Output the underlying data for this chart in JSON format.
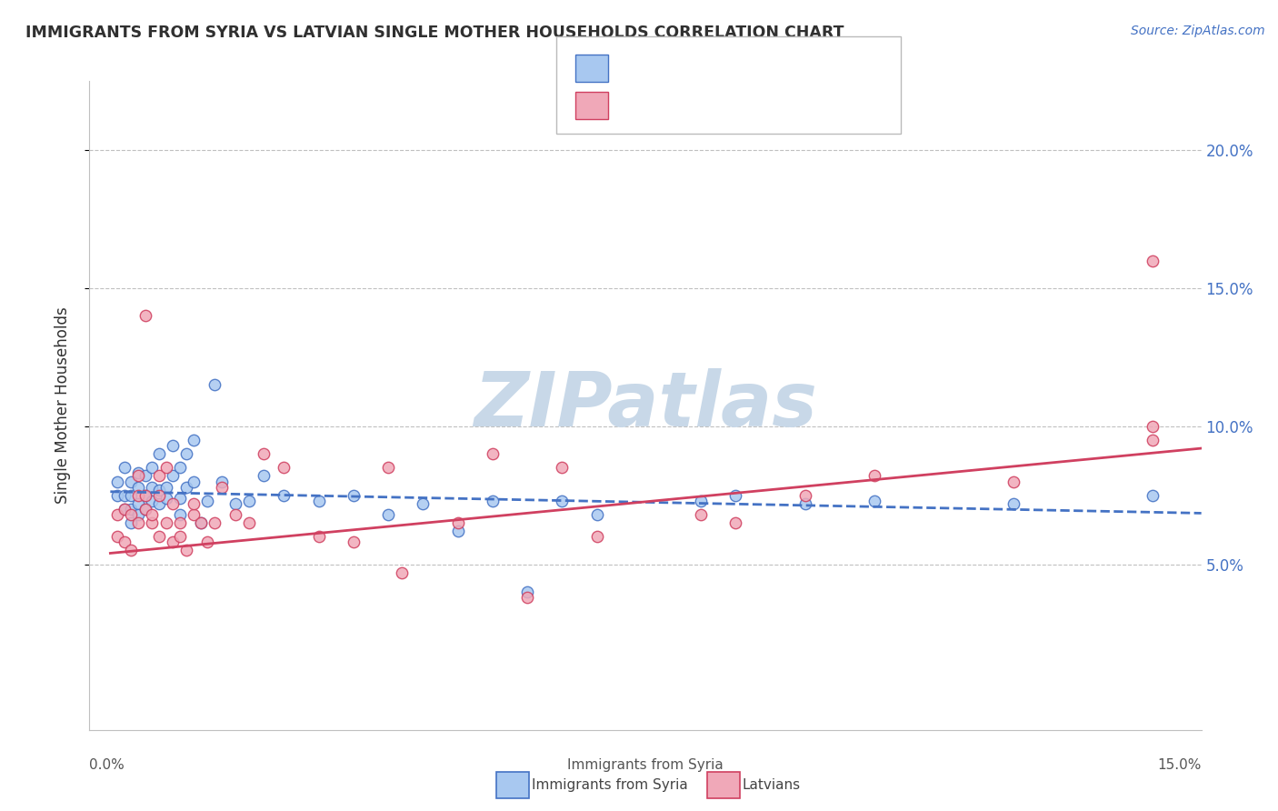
{
  "title": "IMMIGRANTS FROM SYRIA VS LATVIAN SINGLE MOTHER HOUSEHOLDS CORRELATION CHART",
  "source_text": "Source: ZipAtlas.com",
  "ylabel": "Single Mother Households",
  "legend_label1": "Immigrants from Syria",
  "legend_label2": "Latvians",
  "color_blue": "#a8c8f0",
  "color_pink": "#f0a8b8",
  "color_blue_line": "#4472c4",
  "color_pink_line": "#d04060",
  "color_title": "#303030",
  "color_source": "#4472c4",
  "color_watermark": "#c8d8e8",
  "color_grid": "#c0c0c0",
  "ytick_labels": [
    "5.0%",
    "10.0%",
    "15.0%",
    "20.0%"
  ],
  "ytick_values": [
    0.05,
    0.1,
    0.15,
    0.2
  ],
  "xtick_values": [
    0.0,
    0.05,
    0.1,
    0.15
  ],
  "xlim": [
    -0.003,
    0.157
  ],
  "ylim": [
    -0.01,
    0.225
  ],
  "blue_scatter_x": [
    0.001,
    0.001,
    0.002,
    0.002,
    0.002,
    0.003,
    0.003,
    0.003,
    0.003,
    0.004,
    0.004,
    0.004,
    0.004,
    0.005,
    0.005,
    0.005,
    0.006,
    0.006,
    0.006,
    0.007,
    0.007,
    0.007,
    0.008,
    0.008,
    0.009,
    0.009,
    0.01,
    0.01,
    0.01,
    0.011,
    0.011,
    0.012,
    0.012,
    0.013,
    0.014,
    0.015,
    0.016,
    0.018,
    0.02,
    0.022,
    0.025,
    0.03,
    0.035,
    0.04,
    0.045,
    0.05,
    0.055,
    0.06,
    0.065,
    0.07,
    0.085,
    0.09,
    0.1,
    0.11,
    0.13,
    0.15
  ],
  "blue_scatter_y": [
    0.075,
    0.08,
    0.07,
    0.075,
    0.085,
    0.065,
    0.07,
    0.075,
    0.08,
    0.072,
    0.068,
    0.078,
    0.083,
    0.07,
    0.075,
    0.082,
    0.073,
    0.078,
    0.085,
    0.072,
    0.077,
    0.09,
    0.078,
    0.074,
    0.082,
    0.093,
    0.068,
    0.074,
    0.085,
    0.078,
    0.09,
    0.08,
    0.095,
    0.065,
    0.073,
    0.115,
    0.08,
    0.072,
    0.073,
    0.082,
    0.075,
    0.073,
    0.075,
    0.068,
    0.072,
    0.062,
    0.073,
    0.04,
    0.073,
    0.068,
    0.073,
    0.075,
    0.072,
    0.073,
    0.072,
    0.075
  ],
  "pink_scatter_x": [
    0.001,
    0.001,
    0.002,
    0.002,
    0.003,
    0.003,
    0.004,
    0.004,
    0.004,
    0.005,
    0.005,
    0.005,
    0.006,
    0.006,
    0.007,
    0.007,
    0.007,
    0.008,
    0.008,
    0.009,
    0.009,
    0.01,
    0.01,
    0.011,
    0.012,
    0.012,
    0.013,
    0.014,
    0.015,
    0.016,
    0.018,
    0.02,
    0.022,
    0.025,
    0.03,
    0.035,
    0.04,
    0.042,
    0.05,
    0.055,
    0.06,
    0.065,
    0.07,
    0.085,
    0.09,
    0.1,
    0.11,
    0.13,
    0.15,
    0.15,
    0.15
  ],
  "pink_scatter_y": [
    0.06,
    0.068,
    0.058,
    0.07,
    0.055,
    0.068,
    0.065,
    0.075,
    0.082,
    0.07,
    0.075,
    0.14,
    0.065,
    0.068,
    0.06,
    0.075,
    0.082,
    0.065,
    0.085,
    0.072,
    0.058,
    0.065,
    0.06,
    0.055,
    0.068,
    0.072,
    0.065,
    0.058,
    0.065,
    0.078,
    0.068,
    0.065,
    0.09,
    0.085,
    0.06,
    0.058,
    0.085,
    0.047,
    0.065,
    0.09,
    0.038,
    0.085,
    0.06,
    0.068,
    0.065,
    0.075,
    0.082,
    0.08,
    0.1,
    0.095,
    0.16
  ],
  "blue_line_x": [
    0.0,
    0.157
  ],
  "blue_line_y_start": 0.0763,
  "blue_line_y_end": 0.0685,
  "pink_line_x": [
    0.0,
    0.157
  ],
  "pink_line_y_start": 0.054,
  "pink_line_y_end": 0.092
}
